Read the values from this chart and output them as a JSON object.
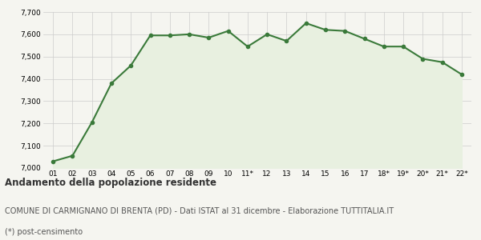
{
  "x_labels": [
    "01",
    "02",
    "03",
    "04",
    "05",
    "06",
    "07",
    "08",
    "09",
    "10",
    "11*",
    "12",
    "13",
    "14",
    "15",
    "16",
    "17",
    "18*",
    "19*",
    "20*",
    "21*",
    "22*"
  ],
  "values": [
    7030,
    7055,
    7205,
    7380,
    7460,
    7595,
    7595,
    7600,
    7585,
    7615,
    7545,
    7600,
    7570,
    7650,
    7620,
    7615,
    7580,
    7545,
    7545,
    7490,
    7475,
    7420
  ],
  "line_color": "#3a7a3a",
  "fill_color": "#e8f0e0",
  "marker": "o",
  "marker_size": 3,
  "line_width": 1.5,
  "ylim": [
    7000,
    7700
  ],
  "yticks": [
    7000,
    7100,
    7200,
    7300,
    7400,
    7500,
    7600,
    7700
  ],
  "bg_color": "#f5f5f0",
  "grid_color": "#cccccc",
  "title1": "Andamento della popolazione residente",
  "title2": "COMUNE DI CARMIGNANO DI BRENTA (PD) - Dati ISTAT al 31 dicembre - Elaborazione TUTTITALIA.IT",
  "title3": "(*) post-censimento",
  "title1_fontsize": 8.5,
  "title2_fontsize": 7.0,
  "title3_fontsize": 7.0,
  "tick_fontsize": 6.5,
  "text_color": "#333333",
  "subtitle_color": "#555555"
}
